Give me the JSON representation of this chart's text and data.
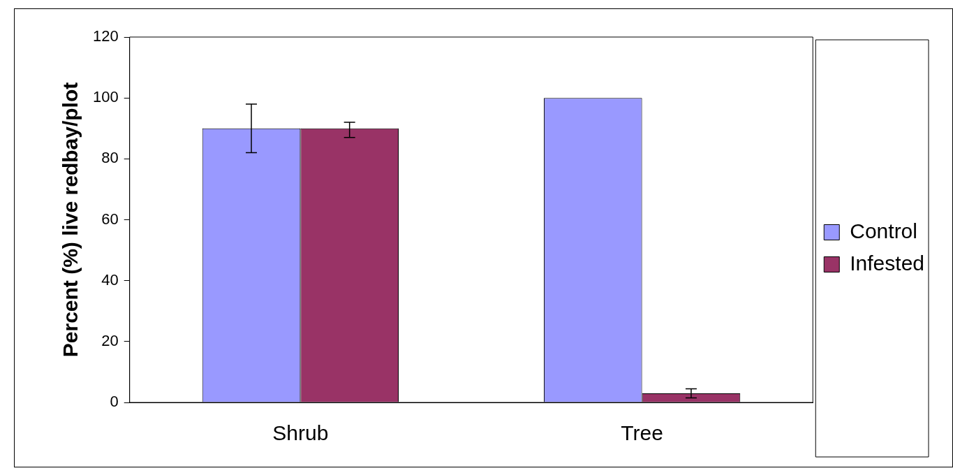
{
  "chart_data": {
    "type": "bar",
    "ylabel": "Percent (%) live redbay/plot",
    "categories": [
      "Shrub",
      "Tree"
    ],
    "series": [
      {
        "name": "Control",
        "color": "#9999ff",
        "values": [
          90,
          100
        ],
        "errors": [
          8,
          null
        ]
      },
      {
        "name": "Infested",
        "color": "#993366",
        "values": [
          90,
          3
        ],
        "errors": [
          [
            87,
            92
          ],
          [
            1.5,
            4.5
          ]
        ]
      }
    ],
    "ylim": [
      0,
      120
    ],
    "yticks": [
      0,
      20,
      40,
      60,
      80,
      100,
      120
    ],
    "grid": false,
    "legend": "right"
  }
}
